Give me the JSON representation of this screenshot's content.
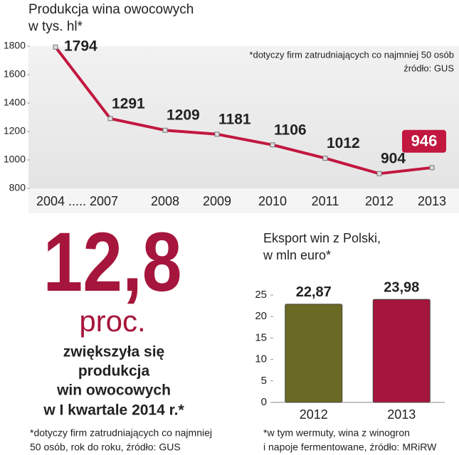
{
  "chart_data": [
    {
      "type": "line",
      "title": [
        "Produkcja wina owocowych",
        "w tys. hl*"
      ],
      "notes": [
        "*dotyczy firm zatrudniających co najmniej 50 osób",
        "źródło: GUS"
      ],
      "categories": [
        "2004 ..... 2007",
        null,
        "2008",
        "2009",
        "2010",
        "2011",
        "2012",
        "2013"
      ],
      "values": [
        1794,
        1291,
        1209,
        1181,
        1106,
        1012,
        904,
        946
      ],
      "color": "#c2173f",
      "highlighted_point": 7,
      "ylim": [
        800,
        1800
      ],
      "yticks": [
        800,
        1000,
        1200,
        1400,
        1600,
        1800
      ]
    },
    {
      "type": "bar",
      "title": [
        "Eksport win z Polski,",
        "w mln euro*"
      ],
      "notes": [
        "*w tym wermuty, wina z winogron",
        "i napoje fermentowane, źródło: MRiRW"
      ],
      "categories": [
        "2012",
        "2013"
      ],
      "values": [
        22.87,
        23.98
      ],
      "value_labels": [
        "22,87",
        "23,98"
      ],
      "colors": [
        "#6b6a25",
        "#a6153b"
      ],
      "ylim": [
        0,
        25
      ],
      "yticks": [
        0,
        5,
        10,
        15,
        20,
        25
      ]
    }
  ],
  "callout": {
    "number": "12,8",
    "unit": "proc.",
    "text": [
      "zwiększyła się",
      "produkcja",
      "win owocowych",
      "w I kwartale 2014 r.*"
    ],
    "notes": [
      "*dotyczy firm zatrudniających co najmniej",
      "50 osób, rok do roku, źródło: GUS"
    ]
  }
}
